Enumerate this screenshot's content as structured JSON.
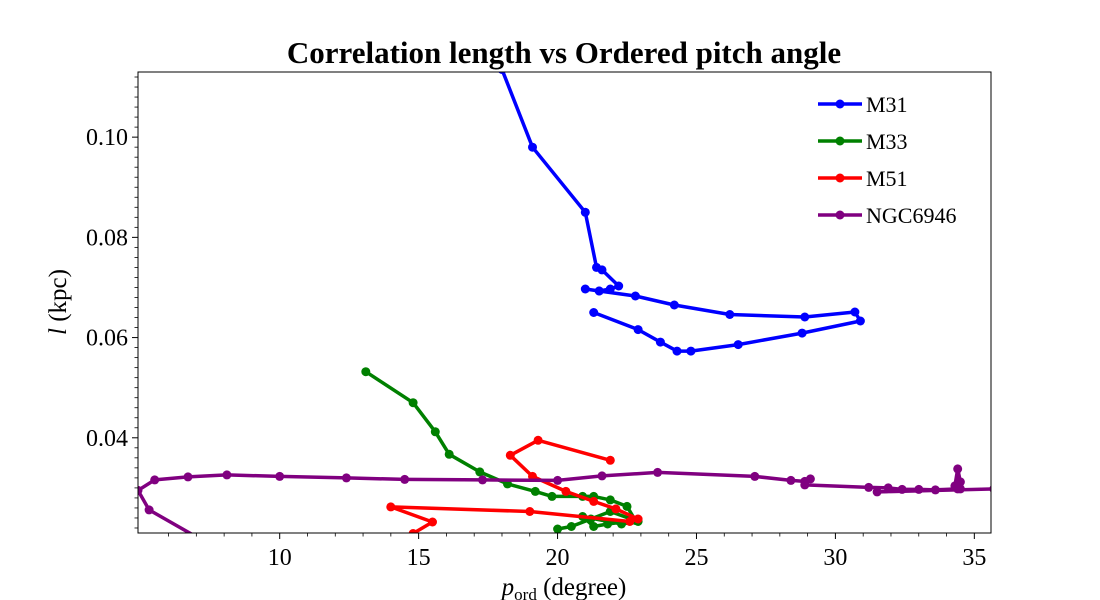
{
  "chart_data": {
    "type": "line",
    "title": "Correlation length vs Ordered pitch angle",
    "xlabel_main": "p",
    "xlabel_sub": "ord",
    "xlabel_rest": " (degree)",
    "ylabel_italic": "l",
    "ylabel_rest": " (kpc)",
    "xlim": [
      4.9,
      35.6
    ],
    "ylim": [
      0.021,
      0.113
    ],
    "x_ticks": [
      10,
      15,
      20,
      25,
      30,
      35
    ],
    "x_tick_labels": [
      "10",
      "15",
      "20",
      "25",
      "30",
      "35"
    ],
    "y_ticks": [
      0.04,
      0.06,
      0.08,
      0.1
    ],
    "y_tick_labels": [
      "0.04",
      "0.06",
      "0.08",
      "0.10"
    ],
    "legend_position": "top-right",
    "grid": false,
    "series": [
      {
        "name": "M31",
        "color": "#0000ff",
        "x": [
          18.0,
          19.1,
          21.0,
          21.4,
          21.6,
          22.2,
          21.9,
          21.5,
          21.0,
          21.5,
          22.8,
          24.2,
          26.2,
          28.9,
          30.7,
          30.9,
          28.8,
          26.5,
          24.8,
          24.3,
          23.7,
          22.9,
          21.3
        ],
        "y": [
          0.1135,
          0.098,
          0.085,
          0.074,
          0.0735,
          0.0703,
          0.0697,
          0.0693,
          0.0697,
          0.0693,
          0.0683,
          0.0665,
          0.0646,
          0.0641,
          0.0651,
          0.0633,
          0.0609,
          0.0586,
          0.0573,
          0.0573,
          0.0591,
          0.0616,
          0.065
        ]
      },
      {
        "name": "M33",
        "color": "#008000",
        "x": [
          13.1,
          14.8,
          15.6,
          16.1,
          17.2,
          18.2,
          19.2,
          19.8,
          20.9,
          21.3,
          21.9,
          22.5,
          22.8,
          21.8,
          21.3,
          20.9,
          22.3,
          22.9,
          21.9,
          21.2,
          20.5,
          20.0
        ],
        "y": [
          0.0532,
          0.047,
          0.0412,
          0.0367,
          0.0332,
          0.0308,
          0.0293,
          0.0283,
          0.0283,
          0.0283,
          0.0276,
          0.0263,
          0.0235,
          0.0228,
          0.0223,
          0.0243,
          0.0228,
          0.0233,
          0.0253,
          0.0238,
          0.0223,
          0.0218
        ]
      },
      {
        "name": "M51",
        "color": "#ff0000",
        "x": [
          21.9,
          19.3,
          18.3,
          19.1,
          20.3,
          21.3,
          22.1,
          22.9,
          22.6,
          19.0,
          14.0,
          15.5,
          14.8
        ],
        "y": [
          0.0355,
          0.0395,
          0.0365,
          0.0323,
          0.0293,
          0.0273,
          0.0258,
          0.0238,
          0.0233,
          0.0253,
          0.0262,
          0.0232,
          0.0209
        ]
      },
      {
        "name": "NGC6946",
        "color": "#800080",
        "x": [
          7.2,
          5.3,
          4.9,
          5.5,
          6.7,
          8.1,
          10.0,
          12.4,
          14.5,
          17.3,
          20.0,
          21.6,
          23.6,
          27.1,
          28.4,
          28.9,
          29.1,
          28.9,
          31.2,
          31.9,
          32.4,
          33.0,
          33.6,
          34.4,
          34.5,
          34.4,
          34.3,
          34.5,
          31.5,
          35.7
        ],
        "y": [
          0.0196,
          0.0256,
          0.0295,
          0.0316,
          0.0322,
          0.0326,
          0.0323,
          0.032,
          0.0317,
          0.0316,
          0.0315,
          0.0324,
          0.0331,
          0.0323,
          0.0315,
          0.0313,
          0.0318,
          0.0306,
          0.0301,
          0.03,
          0.0297,
          0.0297,
          0.0296,
          0.0298,
          0.0312,
          0.0338,
          0.0304,
          0.0298,
          0.0292,
          0.0298
        ]
      }
    ]
  }
}
